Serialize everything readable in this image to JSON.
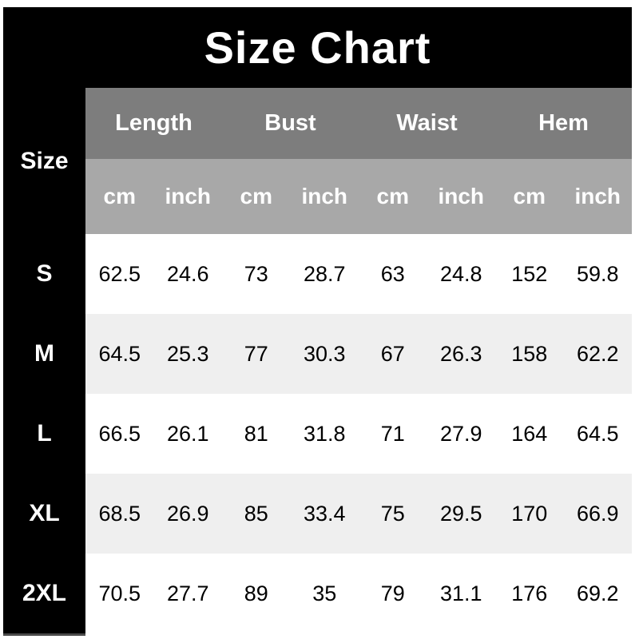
{
  "title": "Size Chart",
  "table": {
    "size_label": "Size",
    "groups": [
      "Length",
      "Bust",
      "Waist",
      "Hem"
    ],
    "units": [
      "cm",
      "inch",
      "cm",
      "inch",
      "cm",
      "inch",
      "cm",
      "inch"
    ],
    "rows": [
      {
        "size": "S",
        "values": [
          "62.5",
          "24.6",
          "73",
          "28.7",
          "63",
          "24.8",
          "152",
          "59.8"
        ]
      },
      {
        "size": "M",
        "values": [
          "64.5",
          "25.3",
          "77",
          "30.3",
          "67",
          "26.3",
          "158",
          "62.2"
        ]
      },
      {
        "size": "L",
        "values": [
          "66.5",
          "26.1",
          "81",
          "31.8",
          "71",
          "27.9",
          "164",
          "64.5"
        ]
      },
      {
        "size": "XL",
        "values": [
          "68.5",
          "26.9",
          "85",
          "33.4",
          "75",
          "29.5",
          "170",
          "66.9"
        ]
      },
      {
        "size": "2XL",
        "values": [
          "70.5",
          "27.7",
          "89",
          "35",
          "79",
          "31.1",
          "176",
          "69.2"
        ]
      }
    ]
  },
  "colors": {
    "panel_bg": "#000000",
    "title_text": "#ffffff",
    "group_header_bg": "#7d7d7d",
    "units_header_bg": "#a8a8a8",
    "row_bg": "#ffffff",
    "row_alt_bg": "#efefef",
    "data_text": "#000000"
  },
  "chart_data": {
    "type": "table",
    "title": "Size Chart",
    "columns": [
      "Size",
      "Length cm",
      "Length inch",
      "Bust cm",
      "Bust inch",
      "Waist cm",
      "Waist inch",
      "Hem cm",
      "Hem inch"
    ],
    "rows": [
      [
        "S",
        62.5,
        24.6,
        73,
        28.7,
        63,
        24.8,
        152,
        59.8
      ],
      [
        "M",
        64.5,
        25.3,
        77,
        30.3,
        67,
        26.3,
        158,
        62.2
      ],
      [
        "L",
        66.5,
        26.1,
        81,
        31.8,
        71,
        27.9,
        164,
        64.5
      ],
      [
        "XL",
        68.5,
        26.9,
        85,
        33.4,
        75,
        29.5,
        170,
        66.9
      ],
      [
        "2XL",
        70.5,
        27.7,
        89,
        35,
        79,
        31.1,
        176,
        69.2
      ]
    ],
    "layout": {
      "grid": false,
      "zebra_striping": true,
      "header_rows": 2,
      "legend_position": "none"
    }
  }
}
